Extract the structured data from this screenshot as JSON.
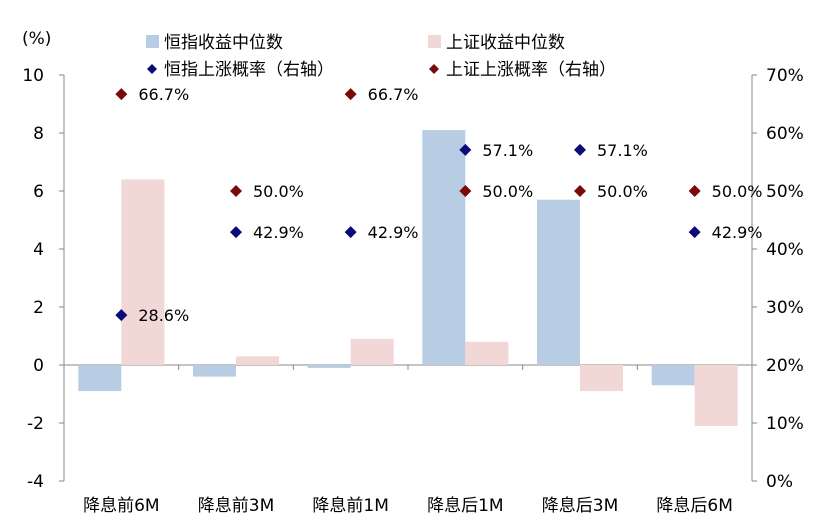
{
  "chart_data": {
    "type": "bar",
    "y_unit_label": "(%)",
    "categories": [
      "降息前6M",
      "降息前3M",
      "降息前1M",
      "降息后1M",
      "降息后3M",
      "降息后6M"
    ],
    "ylim": [
      -4,
      10
    ],
    "y_ticks": [
      "10",
      "8",
      "6",
      "4",
      "2",
      "0",
      "-2",
      "-4"
    ],
    "y_right_lim": [
      0,
      70
    ],
    "y_right_ticks": [
      "70%",
      "60%",
      "50%",
      "40%",
      "30%",
      "20%",
      "10%",
      "0%"
    ],
    "grid": false,
    "legend_position": "top",
    "series": [
      {
        "name": "恒指收益中位数",
        "kind": "bar",
        "axis": "left",
        "color": "#b8cce4",
        "values": [
          -0.9,
          -0.4,
          -0.1,
          8.1,
          5.7,
          -0.7
        ]
      },
      {
        "name": "上证收益中位数",
        "kind": "bar",
        "axis": "left",
        "color": "#f2d7d7",
        "values": [
          6.4,
          0.3,
          0.9,
          0.8,
          -0.9,
          -2.1
        ]
      },
      {
        "name": "恒指上涨概率（右轴）",
        "kind": "marker",
        "axis": "right",
        "color": "#0a0a7a",
        "values": [
          28.6,
          42.9,
          42.9,
          57.1,
          57.1,
          42.9
        ],
        "labels": [
          "28.6%",
          "42.9%",
          "42.9%",
          "57.1%",
          "57.1%",
          "42.9%"
        ]
      },
      {
        "name": "上证上涨概率（右轴）",
        "kind": "marker",
        "axis": "right",
        "color": "#7a0a0a",
        "values": [
          66.7,
          50.0,
          66.7,
          50.0,
          50.0,
          50.0
        ],
        "labels": [
          "66.7%",
          "50.0%",
          "66.7%",
          "50.0%",
          "50.0%",
          "50.0%"
        ]
      }
    ]
  }
}
